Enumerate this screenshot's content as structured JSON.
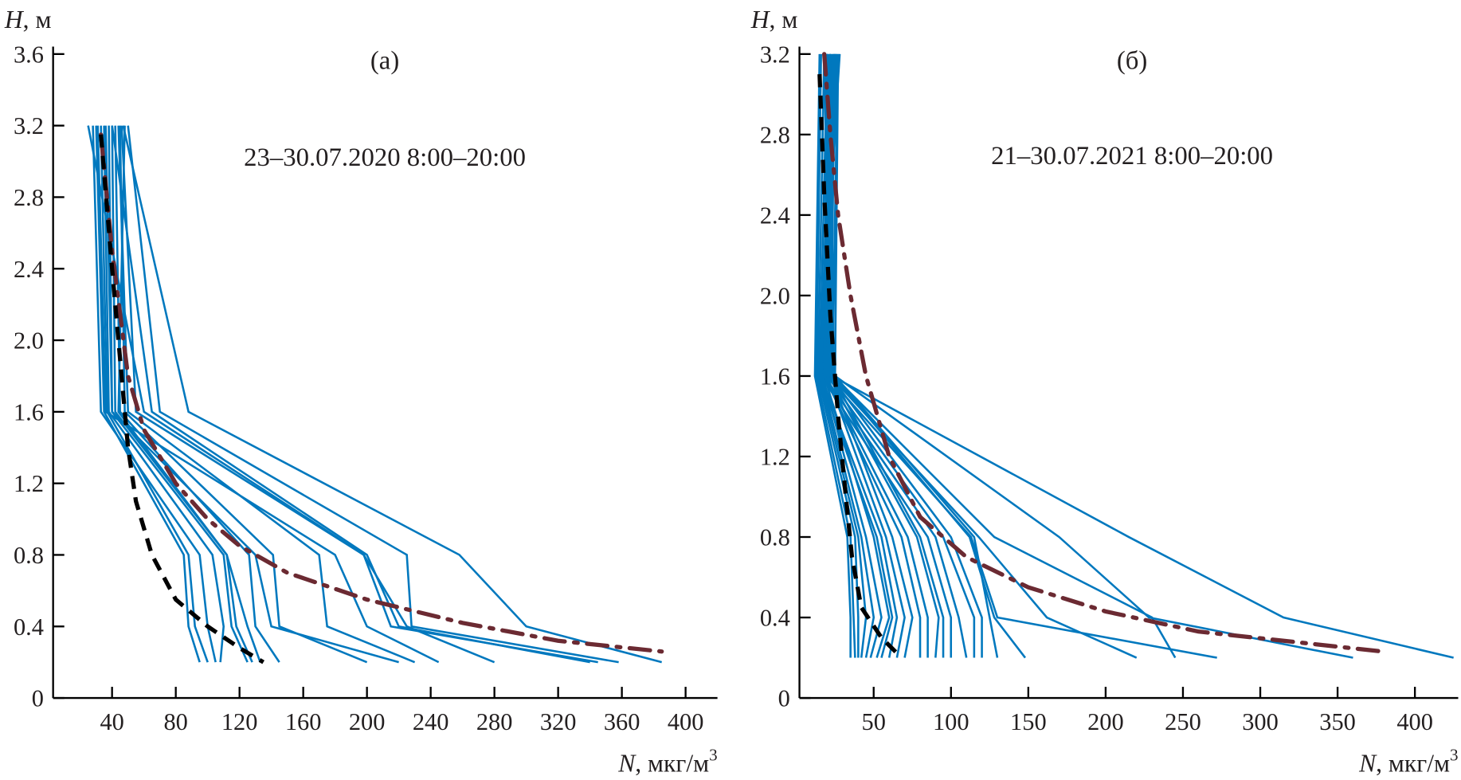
{
  "chart_data": [
    {
      "type": "line",
      "panel_label": "(а)",
      "annotation": "23–30.07.2020 8:00–20:00",
      "ylabel": {
        "var": "H",
        "unit": ", м"
      },
      "xlabel": {
        "var": "N",
        "unit": ", мкг/м",
        "sup": "3"
      },
      "xlim": [
        3,
        420
      ],
      "ylim": [
        0,
        3.6
      ],
      "xticks": [
        40,
        80,
        120,
        160,
        200,
        240,
        280,
        320,
        360,
        400
      ],
      "yticks": [
        "0",
        "0.4",
        "0.8",
        "1.2",
        "1.6",
        "2.0",
        "2.4",
        "2.8",
        "3.2",
        "3.6"
      ],
      "grid": false,
      "colors": {
        "profiles": "#0078be",
        "mean": "#6b2a32",
        "fit": "#000000"
      },
      "profile_heights": [
        0.2,
        0.4,
        0.8,
        1.6,
        3.2
      ],
      "profiles": [
        [
          95,
          88,
          85,
          35,
          30
        ],
        [
          100,
          92,
          88,
          37,
          33
        ],
        [
          108,
          110,
          103,
          38,
          35
        ],
        [
          125,
          115,
          110,
          40,
          38
        ],
        [
          133,
          125,
          112,
          42,
          40
        ],
        [
          145,
          130,
          126,
          45,
          42
        ],
        [
          200,
          145,
          141,
          48,
          45
        ],
        [
          220,
          140,
          130,
          40,
          36
        ],
        [
          230,
          175,
          170,
          50,
          44
        ],
        [
          245,
          200,
          180,
          36,
          31
        ],
        [
          280,
          225,
          198,
          55,
          46
        ],
        [
          340,
          220,
          200,
          65,
          40
        ],
        [
          345,
          215,
          198,
          60,
          25
        ],
        [
          358,
          228,
          225,
          70,
          50
        ],
        [
          385,
          300,
          258,
          88,
          47
        ],
        [
          105,
          100,
          95,
          33,
          28
        ],
        [
          128,
          118,
          112,
          44,
          48
        ]
      ],
      "mean_curve": [
        [
          33,
          3.15
        ],
        [
          40,
          2.5
        ],
        [
          50,
          1.8
        ],
        [
          60,
          1.5
        ],
        [
          80,
          1.2
        ],
        [
          100,
          1.0
        ],
        [
          120,
          0.85
        ],
        [
          150,
          0.7
        ],
        [
          200,
          0.55
        ],
        [
          260,
          0.42
        ],
        [
          320,
          0.32
        ],
        [
          385,
          0.26
        ]
      ],
      "fit_curve": [
        [
          33,
          3.15
        ],
        [
          40,
          2.4
        ],
        [
          46,
          1.8
        ],
        [
          50,
          1.4
        ],
        [
          55,
          1.1
        ],
        [
          65,
          0.8
        ],
        [
          80,
          0.55
        ],
        [
          100,
          0.4
        ],
        [
          120,
          0.28
        ],
        [
          135,
          0.2
        ]
      ]
    },
    {
      "type": "line",
      "panel_label": "(б)",
      "annotation": "21–30.07.2021 8:00–20:00",
      "ylabel": {
        "var": "H",
        "unit": ", м"
      },
      "xlabel": {
        "var": "N",
        "unit": ", мкг/м",
        "sup": "3"
      },
      "xlim": [
        2,
        428
      ],
      "ylim": [
        0,
        3.2
      ],
      "xticks": [
        50,
        100,
        150,
        200,
        250,
        300,
        350,
        400
      ],
      "yticks": [
        "0",
        "0.4",
        "0.8",
        "1.2",
        "1.6",
        "2.0",
        "2.4",
        "2.8",
        "3.2"
      ],
      "grid": false,
      "colors": {
        "profiles": "#0078be",
        "mean": "#6b2a32",
        "fit": "#000000"
      },
      "profile_heights": [
        0.2,
        0.4,
        0.8,
        1.6,
        3.2
      ],
      "profiles": [
        [
          35,
          35,
          33,
          12,
          15
        ],
        [
          38,
          37,
          35,
          13,
          16
        ],
        [
          40,
          40,
          38,
          14,
          18
        ],
        [
          42,
          45,
          40,
          15,
          20
        ],
        [
          45,
          50,
          42,
          16,
          22
        ],
        [
          48,
          55,
          45,
          17,
          25
        ],
        [
          52,
          60,
          50,
          18,
          20
        ],
        [
          55,
          62,
          52,
          15,
          28
        ],
        [
          60,
          65,
          55,
          16,
          24
        ],
        [
          65,
          70,
          58,
          20,
          26
        ],
        [
          70,
          75,
          62,
          22,
          19
        ],
        [
          80,
          80,
          68,
          18,
          21
        ],
        [
          85,
          85,
          72,
          19,
          23
        ],
        [
          90,
          92,
          78,
          21,
          25
        ],
        [
          95,
          95,
          80,
          23,
          27
        ],
        [
          100,
          100,
          85,
          16,
          22
        ],
        [
          110,
          105,
          90,
          18,
          24
        ],
        [
          115,
          115,
          95,
          20,
          20
        ],
        [
          120,
          120,
          100,
          22,
          18
        ],
        [
          130,
          125,
          115,
          25,
          26
        ],
        [
          148,
          128,
          112,
          24,
          22
        ],
        [
          220,
          162,
          118,
          22,
          25
        ],
        [
          245,
          230,
          128,
          24,
          20
        ],
        [
          272,
          130,
          113,
          20,
          22
        ],
        [
          360,
          228,
          170,
          25,
          27
        ],
        [
          425,
          315,
          215,
          23,
          20
        ]
      ],
      "mean_curve": [
        [
          18,
          3.2
        ],
        [
          22,
          2.8
        ],
        [
          27,
          2.4
        ],
        [
          35,
          2.0
        ],
        [
          45,
          1.6
        ],
        [
          60,
          1.2
        ],
        [
          80,
          0.9
        ],
        [
          110,
          0.7
        ],
        [
          150,
          0.55
        ],
        [
          200,
          0.43
        ],
        [
          260,
          0.33
        ],
        [
          320,
          0.28
        ],
        [
          380,
          0.23
        ]
      ],
      "fit_curve": [
        [
          15,
          3.1
        ],
        [
          18,
          2.5
        ],
        [
          22,
          1.9
        ],
        [
          27,
          1.4
        ],
        [
          32,
          1.0
        ],
        [
          36,
          0.7
        ],
        [
          42,
          0.45
        ],
        [
          55,
          0.3
        ],
        [
          68,
          0.2
        ]
      ]
    }
  ]
}
